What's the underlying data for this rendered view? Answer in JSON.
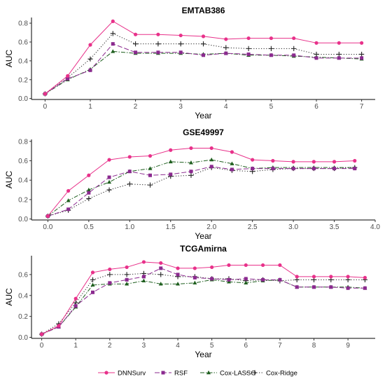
{
  "series_styles": [
    {
      "name": "DNNSurv",
      "color": "#e8318a",
      "dash": "",
      "marker": "circle"
    },
    {
      "name": "RSF",
      "color": "#8b2a8f",
      "dash": "7,3",
      "marker": "square"
    },
    {
      "name": "Cox-LASSO",
      "color": "#1f5f1f",
      "dash": "6,2,1.5,2",
      "marker": "triangle"
    },
    {
      "name": "Cox-Ridge",
      "color": "#222222",
      "dash": "1.2,2.4",
      "marker": "plus"
    }
  ],
  "chart_data": [
    {
      "type": "line",
      "title": "EMTAB386",
      "xlabel": "Year",
      "ylabel": "AUC",
      "xlim": [
        -0.3,
        7.3
      ],
      "ylim": [
        -0.01,
        0.86
      ],
      "xticks": [
        0,
        1,
        2,
        3,
        4,
        5,
        6,
        7
      ],
      "xtick_labels": [
        "0",
        "1",
        "2",
        "3",
        "4",
        "5",
        "6",
        "7"
      ],
      "yticks": [
        0,
        0.2,
        0.4,
        0.6,
        0.8
      ],
      "ytick_labels": [
        "0.0",
        "0.2",
        "0.4",
        "0.6",
        "0.8"
      ],
      "x": [
        0,
        0.5,
        1,
        1.5,
        2,
        2.5,
        3,
        3.5,
        4,
        4.5,
        5,
        5.5,
        6,
        6.5,
        7
      ],
      "series": [
        {
          "name": "DNNSurv",
          "values": [
            0.05,
            0.24,
            0.57,
            0.82,
            0.68,
            0.68,
            0.67,
            0.66,
            0.63,
            0.64,
            0.64,
            0.64,
            0.59,
            0.59,
            0.59
          ]
        },
        {
          "name": "RSF",
          "values": [
            0.05,
            0.21,
            0.3,
            0.58,
            0.49,
            0.49,
            0.49,
            0.46,
            0.48,
            0.47,
            0.46,
            0.46,
            0.43,
            0.43,
            0.43
          ]
        },
        {
          "name": "Cox-LASSO",
          "values": [
            0.05,
            0.2,
            0.31,
            0.5,
            0.48,
            0.48,
            0.48,
            0.47,
            0.48,
            0.46,
            0.46,
            0.45,
            0.44,
            0.43,
            0.42
          ]
        },
        {
          "name": "Cox-Ridge",
          "values": [
            0.05,
            0.22,
            0.42,
            0.69,
            0.58,
            0.58,
            0.58,
            0.58,
            0.54,
            0.53,
            0.53,
            0.53,
            0.47,
            0.47,
            0.47
          ]
        }
      ]
    },
    {
      "type": "line",
      "title": "GSE49997",
      "xlabel": "Year",
      "ylabel": "AUC",
      "xlim": [
        -0.2,
        4.0
      ],
      "ylim": [
        -0.01,
        0.82
      ],
      "xticks": [
        0,
        0.5,
        1,
        1.5,
        2,
        2.5,
        3,
        3.5,
        4
      ],
      "xtick_labels": [
        "0.0",
        "0.5",
        "1.0",
        "1.5",
        "2.0",
        "2.5",
        "3.0",
        "3.5",
        "4.0"
      ],
      "yticks": [
        0,
        0.2,
        0.4,
        0.6,
        0.8
      ],
      "ytick_labels": [
        "0.0",
        "0.2",
        "0.4",
        "0.6",
        "0.8"
      ],
      "x": [
        0,
        0.25,
        0.5,
        0.75,
        1,
        1.25,
        1.5,
        1.75,
        2,
        2.25,
        2.5,
        2.75,
        3,
        3.25,
        3.5,
        3.75
      ],
      "series": [
        {
          "name": "DNNSurv",
          "values": [
            0.03,
            0.29,
            0.45,
            0.61,
            0.64,
            0.65,
            0.71,
            0.73,
            0.73,
            0.69,
            0.61,
            0.6,
            0.59,
            0.59,
            0.59,
            0.6
          ]
        },
        {
          "name": "RSF",
          "values": [
            0.03,
            0.1,
            0.27,
            0.43,
            0.49,
            0.45,
            0.46,
            0.49,
            0.54,
            0.51,
            0.52,
            0.52,
            0.52,
            0.52,
            0.52,
            0.52
          ]
        },
        {
          "name": "Cox-LASSO",
          "values": [
            0.03,
            0.19,
            0.3,
            0.38,
            0.49,
            0.52,
            0.59,
            0.58,
            0.61,
            0.57,
            0.52,
            0.53,
            0.53,
            0.53,
            0.53,
            0.53
          ]
        },
        {
          "name": "Cox-Ridge",
          "values": [
            0.03,
            0.09,
            0.21,
            0.3,
            0.36,
            0.35,
            0.44,
            0.45,
            0.53,
            0.5,
            0.49,
            0.51,
            0.52,
            0.52,
            0.52,
            0.53
          ]
        }
      ]
    },
    {
      "type": "line",
      "title": "TCGAmirna",
      "xlabel": "Year",
      "ylabel": "AUC",
      "xlim": [
        -0.3,
        9.8
      ],
      "ylim": [
        -0.01,
        0.78
      ],
      "xticks": [
        0,
        1,
        2,
        3,
        4,
        5,
        6,
        7,
        8,
        9
      ],
      "xtick_labels": [
        "0",
        "1",
        "2",
        "3",
        "4",
        "5",
        "6",
        "7",
        "8",
        "9"
      ],
      "yticks": [
        0,
        0.2,
        0.4,
        0.6
      ],
      "ytick_labels": [
        "0.0",
        "0.2",
        "0.4",
        "0.6"
      ],
      "x": [
        0,
        0.5,
        1,
        1.5,
        2,
        2.5,
        3,
        3.5,
        4,
        4.5,
        5,
        5.5,
        6,
        6.5,
        7,
        7.5,
        8,
        8.5,
        9,
        9.5
      ],
      "series": [
        {
          "name": "DNNSurv",
          "values": [
            0.03,
            0.11,
            0.37,
            0.62,
            0.65,
            0.67,
            0.72,
            0.71,
            0.66,
            0.66,
            0.67,
            0.69,
            0.69,
            0.69,
            0.69,
            0.58,
            0.58,
            0.58,
            0.58,
            0.57
          ]
        },
        {
          "name": "RSF",
          "values": [
            0.03,
            0.1,
            0.3,
            0.43,
            0.52,
            0.55,
            0.58,
            0.66,
            0.6,
            0.57,
            0.56,
            0.55,
            0.56,
            0.55,
            0.55,
            0.48,
            0.48,
            0.48,
            0.47,
            0.47
          ]
        },
        {
          "name": "Cox-LASSO",
          "values": [
            0.03,
            0.1,
            0.29,
            0.5,
            0.51,
            0.51,
            0.54,
            0.51,
            0.51,
            0.52,
            0.55,
            0.53,
            0.52,
            0.54,
            0.55,
            0.48,
            0.48,
            0.48,
            0.48,
            0.47
          ]
        },
        {
          "name": "Cox-Ridge",
          "values": [
            0.03,
            0.13,
            0.33,
            0.55,
            0.6,
            0.6,
            0.61,
            0.6,
            0.58,
            0.58,
            0.56,
            0.56,
            0.54,
            0.55,
            0.54,
            0.55,
            0.55,
            0.55,
            0.55,
            0.55
          ]
        }
      ]
    }
  ]
}
